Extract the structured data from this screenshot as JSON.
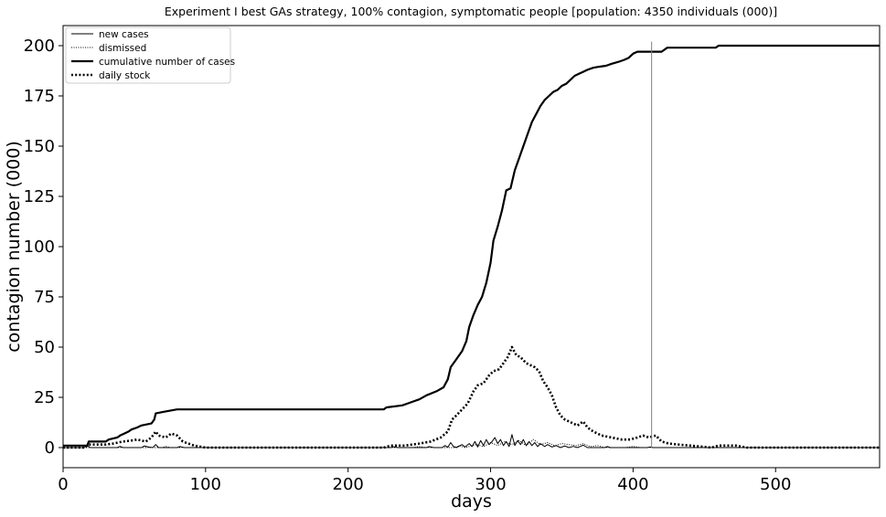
{
  "chart_data": {
    "type": "line",
    "title": "Experiment I best GAs strategy, 100% contagion, symptomatic people [population: 4350 individuals (000)]",
    "xlabel": "days",
    "ylabel": "contagion number (000)",
    "xlim": [
      0,
      573
    ],
    "ylim": [
      -10,
      210
    ],
    "xticks": [
      0,
      100,
      200,
      300,
      400,
      500
    ],
    "yticks": [
      0,
      25,
      50,
      75,
      100,
      125,
      150,
      175,
      200
    ],
    "grid": false,
    "legend_position": "top-left",
    "vline": {
      "x": 413,
      "ymax": 202,
      "color": "#808080"
    },
    "series": [
      {
        "name": "new cases",
        "style": "solid-thin",
        "points": [
          [
            0,
            0
          ],
          [
            15,
            0
          ],
          [
            17,
            1.2
          ],
          [
            19,
            0
          ],
          [
            38,
            0
          ],
          [
            40,
            0.6
          ],
          [
            42,
            0
          ],
          [
            55,
            0
          ],
          [
            57,
            0.8
          ],
          [
            60,
            0.3
          ],
          [
            63,
            0
          ],
          [
            65,
            1.5
          ],
          [
            67,
            0
          ],
          [
            80,
            0
          ],
          [
            82,
            0.5
          ],
          [
            85,
            0
          ],
          [
            230,
            0
          ],
          [
            232,
            0.4
          ],
          [
            235,
            0
          ],
          [
            255,
            0
          ],
          [
            257,
            0.5
          ],
          [
            260,
            0
          ],
          [
            266,
            0
          ],
          [
            268,
            1
          ],
          [
            270,
            0.2
          ],
          [
            272,
            2.5
          ],
          [
            274,
            0.5
          ],
          [
            276,
            0
          ],
          [
            280,
            1.5
          ],
          [
            282,
            0.3
          ],
          [
            285,
            2
          ],
          [
            287,
            0.5
          ],
          [
            289,
            3
          ],
          [
            291,
            0.3
          ],
          [
            293,
            3.5
          ],
          [
            295,
            1
          ],
          [
            297,
            4
          ],
          [
            299,
            1.5
          ],
          [
            301,
            3
          ],
          [
            303,
            5
          ],
          [
            305,
            2
          ],
          [
            307,
            4
          ],
          [
            309,
            1
          ],
          [
            311,
            3
          ],
          [
            313,
            0.5
          ],
          [
            315,
            6.5
          ],
          [
            317,
            1
          ],
          [
            319,
            3.5
          ],
          [
            321,
            1.5
          ],
          [
            323,
            4
          ],
          [
            325,
            1
          ],
          [
            327,
            3
          ],
          [
            329,
            1
          ],
          [
            331,
            2.5
          ],
          [
            333,
            0.5
          ],
          [
            335,
            2
          ],
          [
            338,
            0.5
          ],
          [
            340,
            1.5
          ],
          [
            343,
            0.3
          ],
          [
            346,
            1
          ],
          [
            349,
            0
          ],
          [
            352,
            0.8
          ],
          [
            355,
            0
          ],
          [
            358,
            0.6
          ],
          [
            361,
            0
          ],
          [
            365,
            1.2
          ],
          [
            368,
            0
          ],
          [
            380,
            0
          ],
          [
            382,
            0.5
          ],
          [
            384,
            0
          ],
          [
            410,
            0
          ],
          [
            412,
            0.3
          ],
          [
            414,
            0
          ],
          [
            573,
            0
          ]
        ]
      },
      {
        "name": "dismissed",
        "style": "dotted-thin",
        "points": [
          [
            0,
            0
          ],
          [
            70,
            0
          ],
          [
            72,
            0.6
          ],
          [
            75,
            0
          ],
          [
            245,
            0
          ],
          [
            250,
            0.5
          ],
          [
            255,
            0
          ],
          [
            275,
            0
          ],
          [
            278,
            1
          ],
          [
            282,
            0
          ],
          [
            290,
            1.5
          ],
          [
            295,
            0.5
          ],
          [
            300,
            2.5
          ],
          [
            305,
            1
          ],
          [
            310,
            3
          ],
          [
            315,
            1.5
          ],
          [
            320,
            3.5
          ],
          [
            325,
            1
          ],
          [
            330,
            4
          ],
          [
            335,
            1.5
          ],
          [
            340,
            2.5
          ],
          [
            345,
            1
          ],
          [
            350,
            2
          ],
          [
            355,
            1.5
          ],
          [
            360,
            1
          ],
          [
            365,
            2
          ],
          [
            370,
            0.5
          ],
          [
            375,
            1
          ],
          [
            380,
            0
          ],
          [
            395,
            0
          ],
          [
            400,
            0.6
          ],
          [
            405,
            0
          ],
          [
            573,
            0
          ]
        ]
      },
      {
        "name": "cumulative number of cases",
        "style": "solid-thick",
        "points": [
          [
            0,
            1
          ],
          [
            17,
            1
          ],
          [
            18,
            3
          ],
          [
            30,
            3
          ],
          [
            32,
            4
          ],
          [
            38,
            5
          ],
          [
            40,
            6
          ],
          [
            43,
            7
          ],
          [
            46,
            8
          ],
          [
            48,
            9
          ],
          [
            52,
            10
          ],
          [
            55,
            11
          ],
          [
            62,
            12
          ],
          [
            64,
            14
          ],
          [
            65,
            17
          ],
          [
            72,
            18
          ],
          [
            80,
            19
          ],
          [
            225,
            19
          ],
          [
            227,
            20
          ],
          [
            238,
            21
          ],
          [
            242,
            22
          ],
          [
            246,
            23
          ],
          [
            250,
            24
          ],
          [
            255,
            26
          ],
          [
            262,
            28
          ],
          [
            267,
            30
          ],
          [
            270,
            34
          ],
          [
            272,
            40
          ],
          [
            276,
            44
          ],
          [
            280,
            48
          ],
          [
            283,
            53
          ],
          [
            285,
            60
          ],
          [
            288,
            66
          ],
          [
            291,
            71
          ],
          [
            294,
            75
          ],
          [
            297,
            82
          ],
          [
            300,
            92
          ],
          [
            302,
            103
          ],
          [
            305,
            110
          ],
          [
            308,
            118
          ],
          [
            311,
            128
          ],
          [
            314,
            129
          ],
          [
            317,
            138
          ],
          [
            320,
            144
          ],
          [
            323,
            150
          ],
          [
            326,
            156
          ],
          [
            329,
            162
          ],
          [
            332,
            166
          ],
          [
            335,
            170
          ],
          [
            338,
            173
          ],
          [
            341,
            175
          ],
          [
            344,
            177
          ],
          [
            347,
            178
          ],
          [
            350,
            180
          ],
          [
            353,
            181
          ],
          [
            356,
            183
          ],
          [
            359,
            185
          ],
          [
            362,
            186
          ],
          [
            365,
            187
          ],
          [
            368,
            188
          ],
          [
            372,
            189
          ],
          [
            376,
            189.5
          ],
          [
            381,
            190
          ],
          [
            385,
            191
          ],
          [
            390,
            192
          ],
          [
            394,
            193
          ],
          [
            397,
            194
          ],
          [
            400,
            196
          ],
          [
            403,
            197
          ],
          [
            420,
            197
          ],
          [
            424,
            199
          ],
          [
            458,
            199
          ],
          [
            460,
            200
          ],
          [
            573,
            200
          ]
        ]
      },
      {
        "name": "daily stock",
        "style": "dotted-thick",
        "points": [
          [
            0,
            0
          ],
          [
            15,
            0
          ],
          [
            18,
            1.5
          ],
          [
            30,
            1.5
          ],
          [
            35,
            2
          ],
          [
            42,
            3
          ],
          [
            48,
            3.5
          ],
          [
            52,
            4
          ],
          [
            58,
            3
          ],
          [
            62,
            5
          ],
          [
            65,
            8
          ],
          [
            67,
            6
          ],
          [
            72,
            5
          ],
          [
            76,
            7
          ],
          [
            80,
            6
          ],
          [
            84,
            3
          ],
          [
            88,
            2
          ],
          [
            92,
            1
          ],
          [
            96,
            0.5
          ],
          [
            100,
            0
          ],
          [
            225,
            0
          ],
          [
            230,
            1
          ],
          [
            240,
            1
          ],
          [
            250,
            2
          ],
          [
            258,
            3
          ],
          [
            265,
            5
          ],
          [
            270,
            8
          ],
          [
            273,
            14
          ],
          [
            276,
            16
          ],
          [
            280,
            19
          ],
          [
            284,
            22
          ],
          [
            288,
            28
          ],
          [
            291,
            31
          ],
          [
            295,
            32
          ],
          [
            299,
            36
          ],
          [
            302,
            38
          ],
          [
            306,
            39
          ],
          [
            309,
            42
          ],
          [
            312,
            45
          ],
          [
            315,
            50
          ],
          [
            318,
            46
          ],
          [
            321,
            45
          ],
          [
            325,
            42
          ],
          [
            328,
            41
          ],
          [
            331,
            40
          ],
          [
            334,
            38
          ],
          [
            337,
            33
          ],
          [
            340,
            30
          ],
          [
            343,
            26
          ],
          [
            346,
            20
          ],
          [
            349,
            16
          ],
          [
            352,
            14
          ],
          [
            355,
            13
          ],
          [
            358,
            12
          ],
          [
            361,
            11
          ],
          [
            365,
            13
          ],
          [
            368,
            10
          ],
          [
            372,
            8
          ],
          [
            378,
            6
          ],
          [
            385,
            5
          ],
          [
            392,
            4
          ],
          [
            398,
            4
          ],
          [
            403,
            5
          ],
          [
            407,
            6
          ],
          [
            411,
            5
          ],
          [
            416,
            6
          ],
          [
            420,
            3
          ],
          [
            425,
            2
          ],
          [
            432,
            1.5
          ],
          [
            440,
            1
          ],
          [
            448,
            0.5
          ],
          [
            455,
            0
          ],
          [
            460,
            1
          ],
          [
            465,
            1
          ],
          [
            472,
            1
          ],
          [
            480,
            0
          ],
          [
            573,
            0
          ]
        ]
      }
    ]
  }
}
